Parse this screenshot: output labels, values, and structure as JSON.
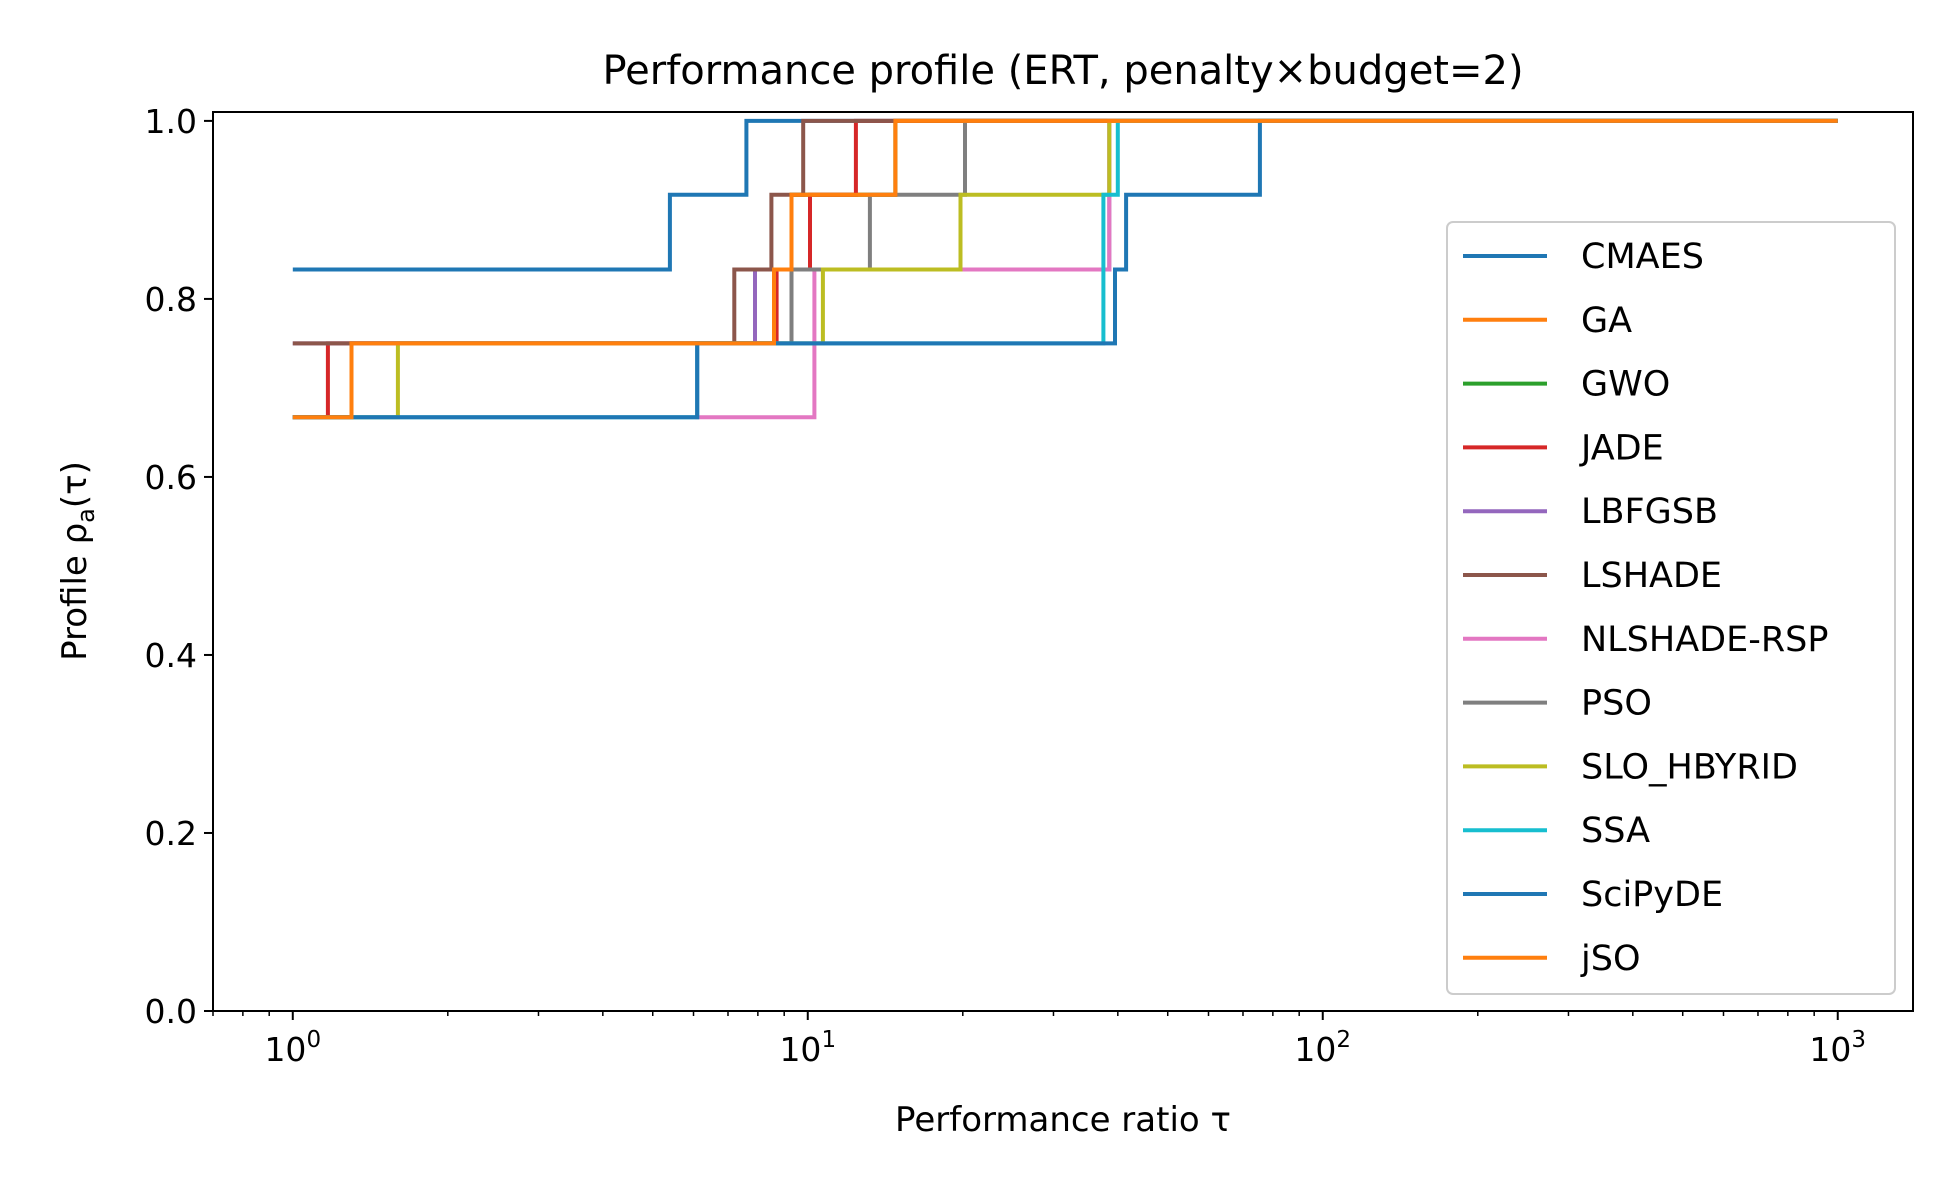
{
  "chart_data": {
    "type": "line",
    "title": "Performance profile (ERT, penalty×budget=2)",
    "xlabel": "Performance ratio τ",
    "ylabel": "Profile ρ",
    "ylabel_sub": "a",
    "ylabel_arg": "(τ)",
    "xscale": "log",
    "xlim": [
      0.7,
      1400
    ],
    "ylim": [
      0.0,
      1.01
    ],
    "x_ticks": [
      {
        "base": "10",
        "exp": "0",
        "value": 1
      },
      {
        "base": "10",
        "exp": "1",
        "value": 10
      },
      {
        "base": "10",
        "exp": "2",
        "value": 100
      },
      {
        "base": "10",
        "exp": "3",
        "value": 1000
      }
    ],
    "y_ticks": [
      "0.0",
      "0.2",
      "0.4",
      "0.6",
      "0.8",
      "1.0"
    ],
    "step": "post",
    "legend_position": "center-right",
    "grid": false,
    "series": [
      {
        "name": "CMAES",
        "color": "#1f77b4",
        "x": [
          1,
          5.4,
          7.6,
          1000
        ],
        "y": [
          0.833,
          0.917,
          1.0,
          1.0
        ]
      },
      {
        "name": "GA",
        "color": "#ff7f0e",
        "x": [
          1,
          1.3,
          8.6,
          9.3,
          14.8,
          1000
        ],
        "y": [
          0.667,
          0.75,
          0.833,
          0.917,
          1.0,
          1.0
        ]
      },
      {
        "name": "GWO",
        "color": "#2ca02c",
        "x": [
          1,
          1.3,
          8.6,
          9.3,
          14.8,
          1000
        ],
        "y": [
          0.667,
          0.75,
          0.833,
          0.917,
          1.0,
          1.0
        ]
      },
      {
        "name": "JADE",
        "color": "#d62728",
        "x": [
          1,
          1.17,
          8.7,
          10.1,
          12.4,
          1000
        ],
        "y": [
          0.667,
          0.75,
          0.833,
          0.917,
          1.0,
          1.0
        ]
      },
      {
        "name": "LBFGSB",
        "color": "#9467bd",
        "x": [
          1,
          7.9,
          38.5,
          1000
        ],
        "y": [
          0.75,
          0.833,
          1.0,
          1.0
        ]
      },
      {
        "name": "LSHADE",
        "color": "#8c564b",
        "x": [
          1,
          7.2,
          8.5,
          9.8,
          1000
        ],
        "y": [
          0.75,
          0.833,
          0.917,
          1.0,
          1.0
        ]
      },
      {
        "name": "NLSHADE-RSP",
        "color": "#e377c2",
        "x": [
          1,
          1.3,
          6.1,
          10.3,
          38.5,
          1000
        ],
        "y": [
          0.667,
          0.75,
          0.667,
          0.833,
          1.0,
          1.0
        ]
      },
      {
        "name": "PSO",
        "color": "#7f7f7f",
        "x": [
          1,
          1.3,
          8.6,
          9.3,
          13.2,
          20.2,
          1000
        ],
        "y": [
          0.667,
          0.75,
          0.75,
          0.833,
          0.917,
          1.0,
          1.0
        ]
      },
      {
        "name": "SLO_HBYRID",
        "color": "#bcbd22",
        "x": [
          1,
          1.6,
          10.7,
          19.8,
          38.5,
          1000
        ],
        "y": [
          0.667,
          0.75,
          0.833,
          0.917,
          1.0,
          1.0
        ]
      },
      {
        "name": "SSA",
        "color": "#17becf",
        "x": [
          1,
          6.1,
          37.5,
          40.0,
          1000
        ],
        "y": [
          0.667,
          0.75,
          0.917,
          1.0,
          1.0
        ]
      },
      {
        "name": "SciPyDE",
        "color": "#1f77b4",
        "x": [
          1,
          6.1,
          39.5,
          41.5,
          75.5,
          1000
        ],
        "y": [
          0.667,
          0.75,
          0.833,
          0.917,
          1.0,
          1.0
        ]
      },
      {
        "name": "jSO",
        "color": "#ff7f0e",
        "x": [
          1,
          1.3,
          8.6,
          9.3,
          14.8,
          1000
        ],
        "y": [
          0.667,
          0.75,
          0.833,
          0.917,
          1.0,
          1.0
        ]
      }
    ]
  }
}
